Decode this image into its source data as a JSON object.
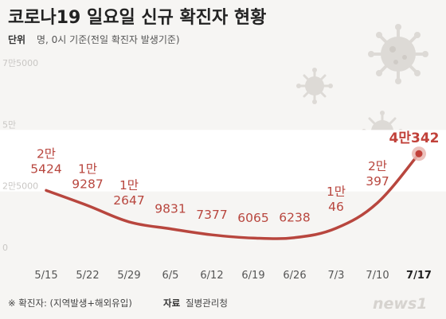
{
  "title": "코로나19 일요일 신규 확진자 현황",
  "subtitle": {
    "unit_label": "단위",
    "unit_text": "명, 0시 기준(전일 확진자 발생기준)"
  },
  "footer": {
    "note": "※ 확진자: (지역발생+해외유입)",
    "source_label": "자료",
    "source_text": "질병관리청",
    "logo_text": "news1"
  },
  "colors": {
    "line": "#b8463e",
    "label": "#b8463e",
    "last_label": "#c1413a",
    "band": "#ffffff",
    "background": "#f6f5f3",
    "axis_text": "#c9c7c4",
    "x_tick": "#555555",
    "virus": "#dddad6"
  },
  "decorations": [
    "virus-icon",
    "virus-icon",
    "virus-icon"
  ],
  "chart_data": {
    "type": "line",
    "x": [
      "5/15",
      "5/22",
      "5/29",
      "6/5",
      "6/12",
      "6/19",
      "6/26",
      "7/3",
      "7/10",
      "7/17"
    ],
    "y": [
      25424,
      19287,
      12647,
      9831,
      7377,
      6065,
      6238,
      10046,
      20397,
      40342
    ],
    "value_labels": [
      [
        "2만",
        "5424"
      ],
      [
        "1만",
        "9287"
      ],
      [
        "1만",
        "2647"
      ],
      [
        "9831"
      ],
      [
        "7377"
      ],
      [
        "6065"
      ],
      [
        "6238"
      ],
      [
        "1만",
        "46"
      ],
      [
        "2만",
        "397"
      ],
      [
        "4만342"
      ]
    ],
    "y_ticks": [
      0,
      25000,
      50000,
      75000
    ],
    "y_tick_labels": [
      "0",
      "2만5000",
      "5만",
      "7만5000"
    ],
    "ylim": [
      0,
      75000
    ],
    "highlight_last": true,
    "grid": false,
    "title": "",
    "xlabel": "",
    "ylabel": ""
  }
}
